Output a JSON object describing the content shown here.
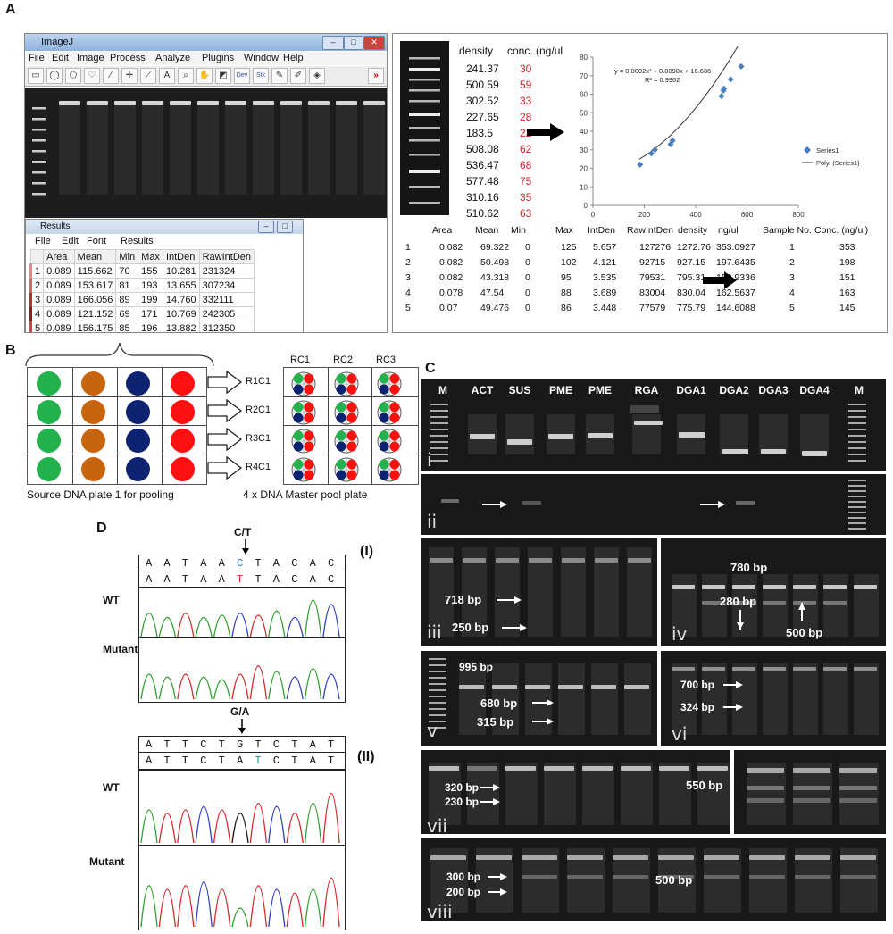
{
  "figure": {
    "panels": {
      "a": "A",
      "b": "B",
      "c": "C",
      "d": "D"
    }
  },
  "panel_a": {
    "imagej": {
      "title": "ImageJ",
      "menu": [
        "File",
        "Edit",
        "Image",
        "Process",
        "Analyze",
        "Plugins",
        "Window",
        "Help"
      ],
      "tools": [
        "rect",
        "oval",
        "poly",
        "freehand",
        "line",
        "point",
        "wand",
        "A",
        "zoom",
        "hand",
        "pick",
        "Dev",
        "Stk",
        "pencil",
        "brush",
        "fill",
        "more"
      ]
    },
    "results": {
      "title": "Results",
      "menu": [
        "File",
        "Edit",
        "Font",
        "Results"
      ],
      "headers": [
        "",
        "Area",
        "Mean",
        "Min",
        "Max",
        "IntDen",
        "RawIntDen"
      ],
      "rows": [
        [
          "1",
          "0.089",
          "115.662",
          "70",
          "155",
          "10.281",
          "231324"
        ],
        [
          "2",
          "0.089",
          "153.617",
          "81",
          "193",
          "13.655",
          "307234"
        ],
        [
          "3",
          "0.089",
          "166.056",
          "89",
          "199",
          "14.760",
          "332111"
        ],
        [
          "4",
          "0.089",
          "121.152",
          "69",
          "171",
          "10.769",
          "242305"
        ],
        [
          "5",
          "0.089",
          "156.175",
          "85",
          "196",
          "13.882",
          "312350"
        ]
      ]
    },
    "density_header": "density",
    "conc_header": "conc. (ng/ul",
    "density_rows": [
      {
        "density": "241.37",
        "conc": "30"
      },
      {
        "density": "500.59",
        "conc": "59"
      },
      {
        "density": "302.52",
        "conc": "33"
      },
      {
        "density": "227.65",
        "conc": "28"
      },
      {
        "density": "183.5",
        "conc": "22"
      },
      {
        "density": "508.08",
        "conc": "62"
      },
      {
        "density": "536.47",
        "conc": "68"
      },
      {
        "density": "577.48",
        "conc": "75"
      },
      {
        "density": "310.16",
        "conc": "35"
      },
      {
        "density": "510.62",
        "conc": "63"
      }
    ],
    "summary_headers": [
      "Area",
      "Mean",
      "Min",
      "Max",
      "IntDen",
      "RawIntDen",
      "density",
      "ng/ul",
      "Sample No.",
      "Conc. (ng/ul)"
    ],
    "summary_rows": [
      [
        "1",
        "0.082",
        "69.322",
        "0",
        "125",
        "5.657",
        "127276",
        "1272.76",
        "353.0927",
        "1",
        "353"
      ],
      [
        "2",
        "0.082",
        "50.498",
        "0",
        "102",
        "4.121",
        "92715",
        "927.15",
        "197.6435",
        "2",
        "198"
      ],
      [
        "3",
        "0.082",
        "43.318",
        "0",
        "95",
        "3.535",
        "79531",
        "795.31",
        "150.9336",
        "3",
        "151"
      ],
      [
        "4",
        "0.078",
        "47.54",
        "0",
        "88",
        "3.689",
        "83004",
        "830.04",
        "162.5637",
        "4",
        "163"
      ],
      [
        "5",
        "0.07",
        "49.476",
        "0",
        "86",
        "3.448",
        "77579",
        "775.79",
        "144.6088",
        "5",
        "145"
      ]
    ]
  },
  "chart_data": {
    "type": "scatter",
    "equation": "y = 0.0002x² + 0.0098x + 16.636",
    "r2": "R² = 0.9962",
    "xlim": [
      0,
      800
    ],
    "ylim": [
      0,
      80
    ],
    "xticks": [
      "0",
      "200",
      "400",
      "600",
      "800"
    ],
    "yticks": [
      "0",
      "10",
      "20",
      "30",
      "40",
      "50",
      "60",
      "70",
      "80"
    ],
    "series": [
      {
        "name": "Series1",
        "color": "#4a7ebb",
        "points": [
          [
            241.37,
            30
          ],
          [
            500.59,
            59
          ],
          [
            302.52,
            33
          ],
          [
            227.65,
            28
          ],
          [
            183.5,
            22
          ],
          [
            508.08,
            62
          ],
          [
            536.47,
            68
          ],
          [
            577.48,
            75
          ],
          [
            310.16,
            35
          ],
          [
            510.62,
            63
          ]
        ]
      },
      {
        "name": "Poly. (Series1)",
        "color": "#333333",
        "fit": [
          0.0002,
          0.0098,
          16.636
        ]
      }
    ],
    "legend": "right"
  },
  "panel_b": {
    "row_labels": [
      "R1C1",
      "R2C1",
      "R3C1",
      "R4C1"
    ],
    "col_labels": [
      "RC1",
      "RC2",
      "RC3"
    ],
    "source_caption": "Source DNA plate 1 for pooling",
    "master_caption": "4 x DNA Master pool plate",
    "colors": [
      "#22b14c",
      "#c9640e",
      "#0e2272",
      "#ff1010"
    ]
  },
  "panel_c": {
    "lane_labels": [
      "M",
      "ACT",
      "SUS",
      "PME",
      "PME",
      "RGA",
      "DGA1",
      "DGA2",
      "DGA3",
      "DGA4",
      "M"
    ],
    "sub": [
      "i",
      "ii",
      "iii",
      "iv",
      "v",
      "vi",
      "vii",
      "viii"
    ],
    "bands": {
      "iii": [
        "718 bp",
        "250 bp"
      ],
      "iv": [
        "780 bp",
        "280 bp",
        "500 bp"
      ],
      "v": [
        "995 bp",
        "680 bp",
        "315 bp"
      ],
      "vi": [
        "700 bp",
        "324 bp"
      ],
      "vii": [
        "320 bp",
        "230 bp",
        "550 bp"
      ],
      "viii": [
        "300 bp",
        "200 bp",
        "500 bp"
      ]
    }
  },
  "panel_d": {
    "mut1": "C/T",
    "mut2": "G/A",
    "seq1_wt": [
      "A",
      "A",
      "T",
      "A",
      "A",
      "C",
      "T",
      "A",
      "C",
      "A",
      "C"
    ],
    "seq1_mut": [
      "A",
      "A",
      "T",
      "A",
      "A",
      "T",
      "T",
      "A",
      "C",
      "A",
      "C"
    ],
    "seq2_wt": [
      "A",
      "T",
      "T",
      "C",
      "T",
      "G",
      "T",
      "C",
      "T",
      "A",
      "T"
    ],
    "seq2_mut": [
      "A",
      "T",
      "T",
      "C",
      "T",
      "A",
      "T",
      "C",
      "T",
      "A",
      "T"
    ],
    "label_I": "(I)",
    "label_II": "(II)",
    "wt": "WT",
    "mutant": "Mutant"
  }
}
